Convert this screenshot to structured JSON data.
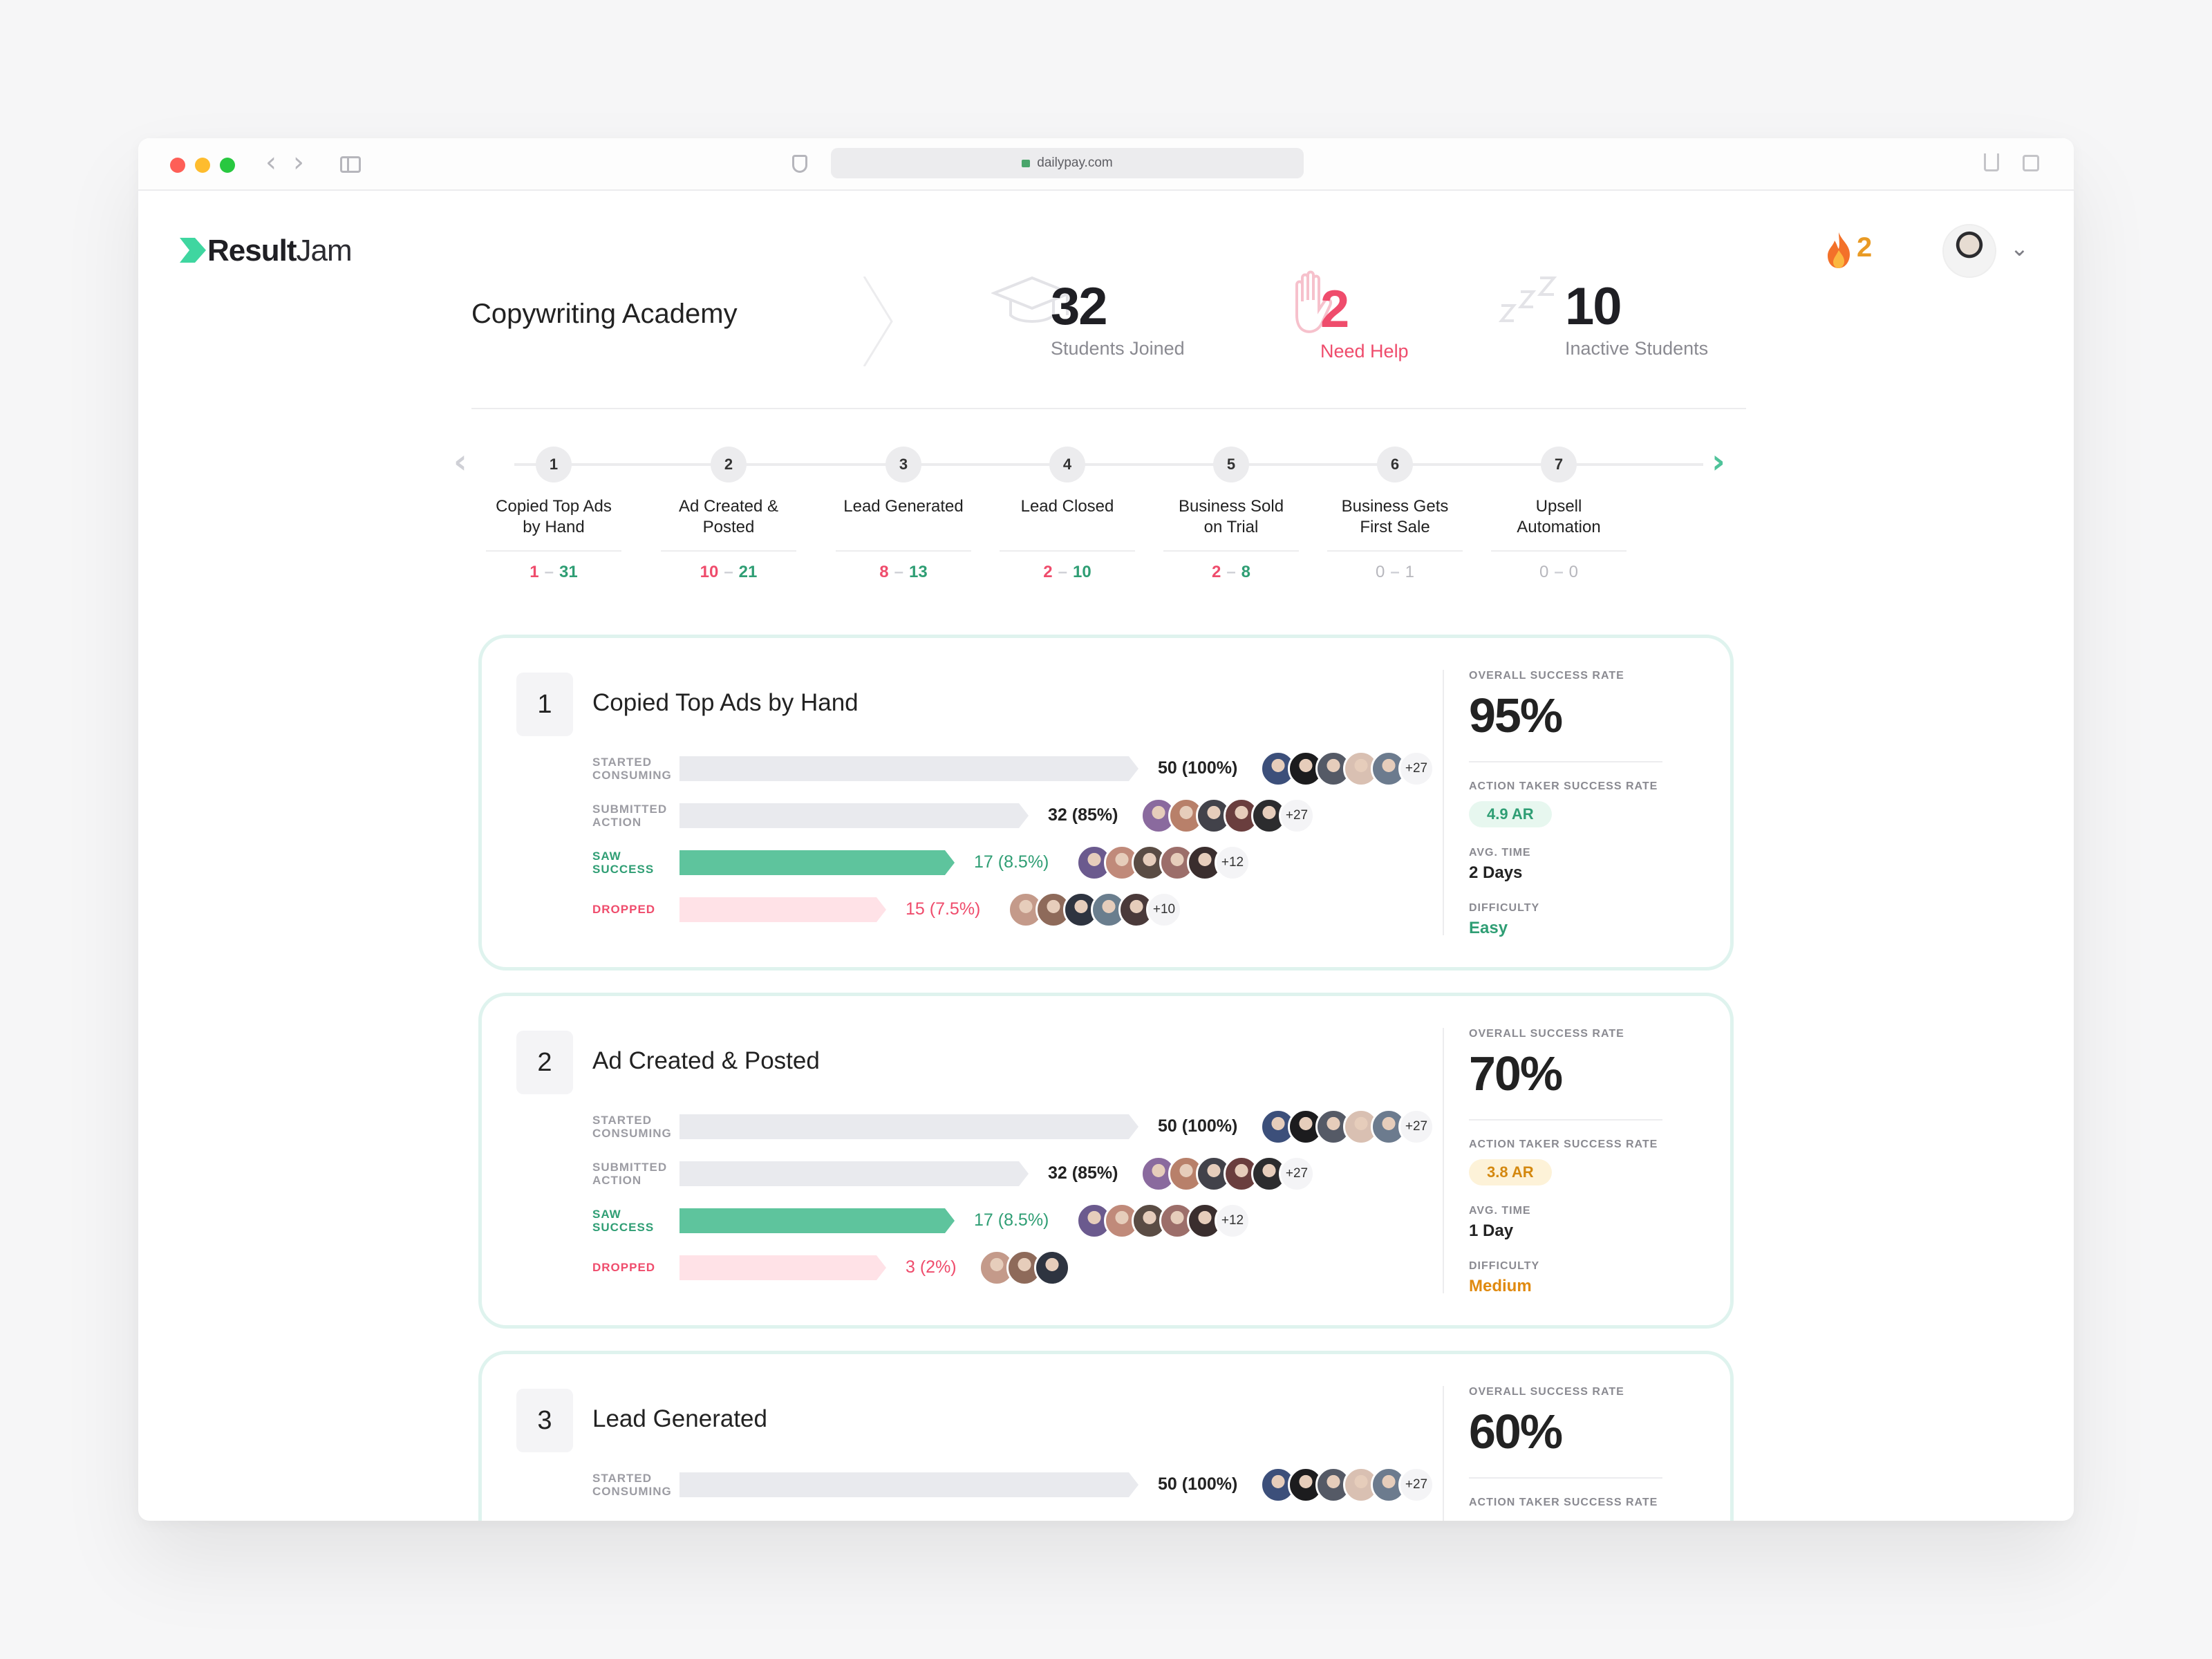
{
  "browser": {
    "url": "dailypay.com"
  },
  "app": {
    "logo_bold": "Result",
    "logo_light": "Jam",
    "streak": "2"
  },
  "course": {
    "title": "Copywriting Academy"
  },
  "stats": {
    "students_joined": {
      "value": "32",
      "label": "Students Joined"
    },
    "need_help": {
      "value": "2",
      "label": "Need Help"
    },
    "inactive": {
      "value": "10",
      "label": "Inactive Students"
    }
  },
  "steps": [
    {
      "n": "1",
      "line1": "Copied Top Ads",
      "line2": "by Hand",
      "a": "1",
      "b": "31"
    },
    {
      "n": "2",
      "line1": "Ad Created &",
      "line2": "Posted",
      "a": "10",
      "b": "21"
    },
    {
      "n": "3",
      "line1": "Lead Generated",
      "line2": "",
      "a": "8",
      "b": "13"
    },
    {
      "n": "4",
      "line1": "Lead Closed",
      "line2": "",
      "a": "2",
      "b": "10"
    },
    {
      "n": "5",
      "line1": "Business Sold",
      "line2": "on Trial",
      "a": "2",
      "b": "8"
    },
    {
      "n": "6",
      "line1": "Business Gets",
      "line2": "First Sale",
      "a": "0",
      "b": "1"
    },
    {
      "n": "7",
      "line1": "Upsell",
      "line2": "Automation",
      "a": "0",
      "b": "0"
    }
  ],
  "labels": {
    "started_1": "STARTED",
    "started_2": "CONSUMING",
    "submitted_1": "SUBMITTED",
    "submitted_2": "ACTION",
    "saw_1": "SAW",
    "saw_2": "SUCCESS",
    "dropped": "DROPPED",
    "overall": "OVERALL SUCCESS RATE",
    "action_taker": "ACTION TAKER SUCCESS RATE",
    "avg_time": "AVG. TIME",
    "difficulty": "DIFFICULTY"
  },
  "cards": [
    {
      "num": "1",
      "title": "Copied Top Ads by Hand",
      "started": {
        "text": "50 (100%)",
        "pct": 100,
        "more": "+27"
      },
      "submitted": {
        "text": "32 (85%)",
        "pct": 85,
        "more": "+27"
      },
      "success": {
        "text": "17 (8.5%)",
        "pct": 8.5,
        "more": "+12"
      },
      "dropped": {
        "text": "15 (7.5%)",
        "pct": 7.5,
        "more": "+10"
      },
      "overall": "95%",
      "ar": "4.9 AR",
      "ar_color": "green",
      "avg_time": "2 Days",
      "difficulty": "Easy"
    },
    {
      "num": "2",
      "title": "Ad Created & Posted",
      "started": {
        "text": "50 (100%)",
        "pct": 100,
        "more": "+27"
      },
      "submitted": {
        "text": "32 (85%)",
        "pct": 85,
        "more": "+27"
      },
      "success": {
        "text": "17 (8.5%)",
        "pct": 8.5,
        "more": "+12"
      },
      "dropped": {
        "text": "3 (2%)",
        "pct": 2,
        "more": ""
      },
      "overall": "70%",
      "ar": "3.8 AR",
      "ar_color": "amber",
      "avg_time": "1 Day",
      "difficulty": "Medium"
    },
    {
      "num": "3",
      "title": "Lead Generated",
      "started": {
        "text": "50 (100%)",
        "pct": 100,
        "more": "+27"
      },
      "overall": "60%"
    }
  ]
}
